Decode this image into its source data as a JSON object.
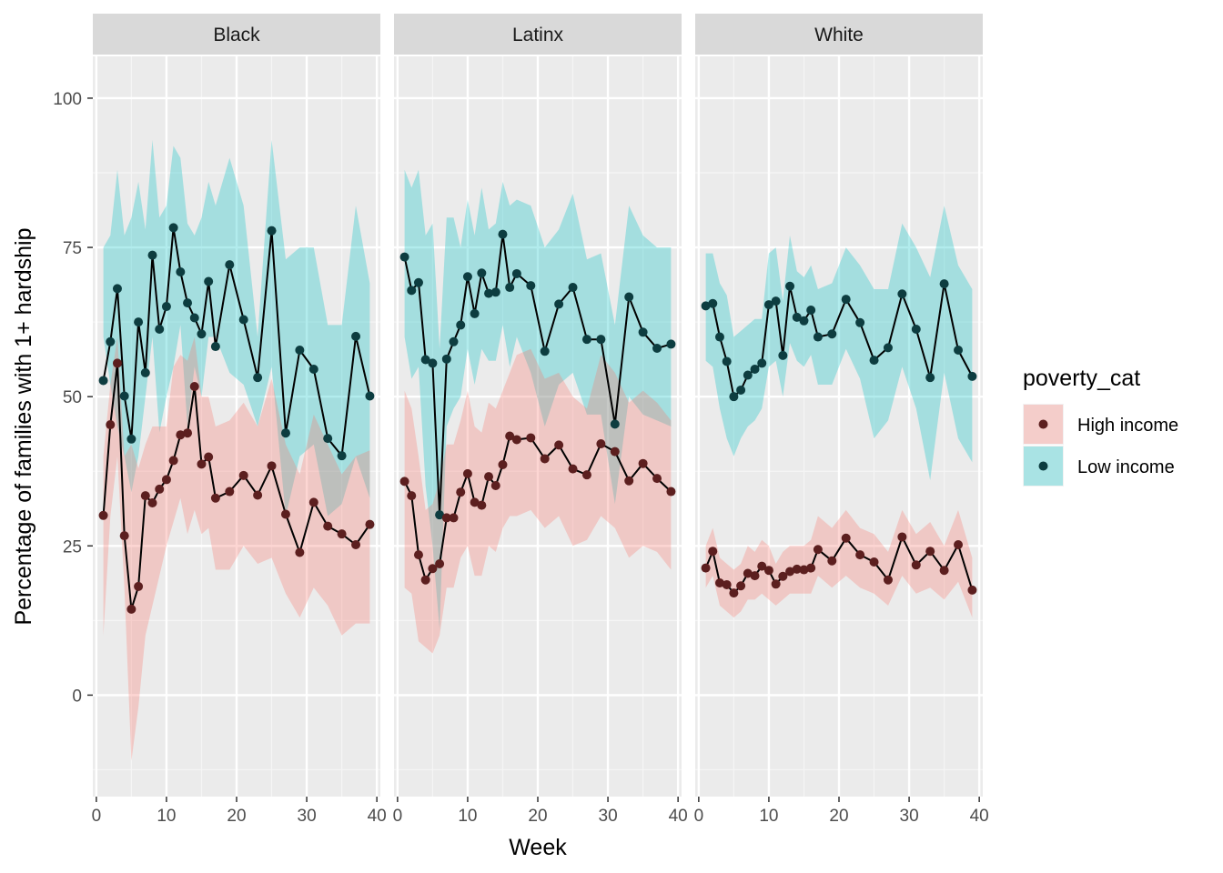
{
  "chart_data": {
    "type": "line",
    "xlabel": "Week",
    "ylabel": "Percentage of families with 1+ hardship",
    "xlim": [
      -0.5,
      40.5
    ],
    "ylim": [
      -17,
      107
    ],
    "x_ticks": [
      0,
      10,
      20,
      30,
      40
    ],
    "y_ticks": [
      0,
      25,
      50,
      75,
      100
    ],
    "grid": true,
    "legend": {
      "title": "poverty_cat",
      "position": "right",
      "entries": [
        {
          "label": "High income",
          "fill": "#f8766d",
          "point": "#5c1f1f"
        },
        {
          "label": "Low income",
          "fill": "#00bfc4",
          "point": "#0d3d40"
        }
      ]
    },
    "facets": [
      {
        "label": "Black",
        "series": [
          {
            "name": "Low income",
            "x": [
              1,
              2,
              3,
              4,
              5,
              6,
              7,
              8,
              9,
              10,
              11,
              12,
              13,
              14,
              15,
              16,
              17,
              19,
              21,
              23,
              25,
              27,
              29,
              31,
              33,
              35,
              37,
              39
            ],
            "y": [
              52.7,
              59.2,
              68.1,
              50.1,
              42.9,
              62.5,
              54.0,
              73.7,
              61.3,
              65.1,
              78.3,
              70.9,
              65.7,
              63.2,
              60.5,
              69.3,
              58.4,
              72.1,
              62.9,
              53.2,
              77.8,
              43.9,
              57.8,
              54.6,
              43.0,
              40.1,
              60.1,
              50.1
            ],
            "lower": [
              60,
              52,
              45,
              40,
              34,
              40,
              50,
              60,
              44,
              50,
              55,
              62,
              45,
              55,
              50,
              60,
              60,
              54,
              52,
              45,
              55,
              30,
              40,
              42,
              30,
              32,
              40,
              33
            ],
            "upper": [
              75,
              77,
              88,
              77,
              80,
              86,
              78,
              93,
              80,
              82,
              92,
              90,
              79,
              77,
              80,
              86,
              82,
              90,
              82,
              60,
              93,
              73,
              75,
              75,
              62,
              62,
              82,
              69
            ]
          },
          {
            "name": "High income",
            "x": [
              1,
              2,
              3,
              4,
              5,
              6,
              7,
              8,
              9,
              10,
              11,
              12,
              13,
              14,
              15,
              16,
              17,
              19,
              21,
              23,
              25,
              27,
              29,
              31,
              33,
              35,
              37,
              39
            ],
            "y": [
              30.1,
              45.3,
              55.6,
              26.7,
              14.4,
              18.2,
              33.4,
              32.2,
              34.5,
              36.1,
              39.3,
              43.6,
              43.9,
              51.7,
              38.7,
              39.9,
              33.0,
              34.1,
              36.8,
              33.5,
              38.4,
              30.3,
              23.9,
              32.3,
              28.3,
              27.0,
              25.2,
              28.6
            ],
            "lower": [
              10,
              30,
              40,
              18,
              -11,
              -2,
              10,
              15,
              20,
              25,
              29,
              33,
              27,
              31,
              27,
              28,
              21,
              21,
              25,
              22,
              23,
              17,
              13,
              18,
              15,
              10,
              12,
              12
            ],
            "upper": [
              40,
              52,
              60,
              40,
              42,
              38,
              42,
              45,
              45,
              45,
              55,
              57,
              56,
              60,
              50,
              50,
              45,
              46,
              49,
              45,
              53,
              42,
              37,
              47,
              42,
              37,
              40,
              41
            ]
          }
        ]
      },
      {
        "label": "Latinx",
        "series": [
          {
            "name": "Low income",
            "x": [
              1,
              2,
              3,
              4,
              5,
              6,
              7,
              8,
              9,
              10,
              11,
              12,
              13,
              14,
              15,
              16,
              17,
              19,
              21,
              23,
              25,
              27,
              29,
              31,
              33,
              35,
              37,
              39
            ],
            "y": [
              73.4,
              67.8,
              69.1,
              56.2,
              55.6,
              30.2,
              56.3,
              59.2,
              62.0,
              70.1,
              63.9,
              70.7,
              67.3,
              67.5,
              77.2,
              68.3,
              70.6,
              68.6,
              57.6,
              65.5,
              68.3,
              59.6,
              59.6,
              45.4,
              66.7,
              60.8,
              58.1,
              58.8
            ],
            "lower": [
              60,
              53,
              55,
              35,
              25,
              11,
              45,
              48,
              50,
              58,
              52,
              58,
              56,
              56,
              62,
              55,
              60,
              54,
              45,
              52,
              54,
              47,
              47,
              32,
              50,
              47,
              46,
              45
            ],
            "upper": [
              88,
              85,
              88,
              77,
              79,
              58,
              80,
              80,
              75,
              83,
              77,
              85,
              78,
              79,
              86,
              82,
              83,
              82,
              75,
              78,
              84,
              73,
              74,
              62,
              82,
              77,
              75,
              75
            ]
          },
          {
            "name": "High income",
            "x": [
              1,
              2,
              3,
              4,
              5,
              6,
              7,
              8,
              9,
              10,
              11,
              12,
              13,
              14,
              15,
              16,
              17,
              19,
              21,
              23,
              25,
              27,
              29,
              31,
              33,
              35,
              37,
              39
            ],
            "y": [
              35.8,
              33.4,
              23.5,
              19.3,
              21.2,
              22.0,
              29.7,
              29.7,
              34.0,
              37.1,
              32.3,
              31.8,
              36.6,
              35.1,
              38.6,
              43.4,
              42.8,
              43.1,
              39.6,
              41.9,
              37.9,
              36.9,
              42.1,
              40.8,
              35.9,
              38.8,
              36.3,
              34.1
            ],
            "lower": [
              18,
              17,
              9,
              8,
              7,
              10,
              18,
              18,
              23,
              25,
              20,
              20,
              25,
              24,
              28,
              30,
              30,
              31,
              28,
              30,
              25,
              26,
              30,
              28,
              23,
              25,
              24,
              21
            ],
            "upper": [
              51,
              48,
              40,
              31,
              32,
              36,
              42,
              42,
              46,
              51,
              45,
              44,
              49,
              48,
              51,
              54,
              57,
              58,
              53,
              54,
              50,
              48,
              57,
              54,
              49,
              51,
              49,
              46
            ]
          }
        ]
      },
      {
        "label": "White",
        "series": [
          {
            "name": "Low income",
            "x": [
              1,
              2,
              3,
              4,
              5,
              6,
              7,
              8,
              9,
              10,
              11,
              12,
              13,
              14,
              15,
              16,
              17,
              19,
              21,
              23,
              25,
              27,
              29,
              31,
              33,
              35,
              37,
              39
            ],
            "y": [
              65.2,
              65.6,
              60.0,
              55.9,
              50.0,
              51.1,
              53.6,
              54.6,
              55.6,
              65.4,
              66.0,
              56.9,
              68.5,
              63.3,
              62.7,
              64.5,
              60.0,
              60.5,
              66.3,
              62.4,
              56.1,
              58.2,
              67.2,
              61.3,
              53.2,
              68.9,
              57.8,
              53.4
            ],
            "lower": [
              56,
              55,
              48,
              43,
              40,
              43,
              45,
              46,
              48,
              55,
              56,
              50,
              59,
              56,
              55,
              57,
              52,
              52,
              58,
              53,
              43,
              46,
              55,
              48,
              36,
              54,
              43,
              39
            ],
            "upper": [
              74,
              74,
              69,
              67,
              60,
              61,
              62,
              63,
              63,
              74,
              75,
              66,
              77,
              71,
              70,
              72,
              68,
              69,
              75,
              72,
              68,
              68,
              79,
              75,
              70,
              82,
              72,
              68
            ]
          },
          {
            "name": "High income",
            "x": [
              1,
              2,
              3,
              4,
              5,
              6,
              7,
              8,
              9,
              10,
              11,
              12,
              13,
              14,
              15,
              16,
              17,
              19,
              21,
              23,
              25,
              27,
              29,
              31,
              33,
              35,
              37,
              39
            ],
            "y": [
              21.3,
              24.1,
              18.8,
              18.5,
              17.1,
              18.3,
              20.4,
              20.0,
              21.6,
              20.9,
              18.6,
              19.9,
              20.7,
              21.1,
              21.0,
              21.3,
              24.4,
              22.5,
              26.3,
              23.5,
              22.3,
              19.3,
              26.5,
              21.8,
              24.1,
              20.9,
              25.2,
              17.6
            ],
            "lower": [
              18,
              20,
              15,
              14,
              13,
              14,
              16,
              16,
              17,
              16,
              15,
              16,
              17,
              17,
              17,
              17,
              20,
              18,
              20,
              18,
              17,
              15,
              20,
              17,
              18,
              16,
              19,
              13
            ],
            "upper": [
              25,
              28,
              23,
              22,
              21,
              22,
              25,
              24,
              26,
              25,
              22,
              24,
              25,
              25,
              25,
              26,
              30,
              28,
              31,
              28,
              27,
              24,
              31,
              27,
              29,
              25,
              31,
              23
            ]
          }
        ]
      }
    ]
  }
}
